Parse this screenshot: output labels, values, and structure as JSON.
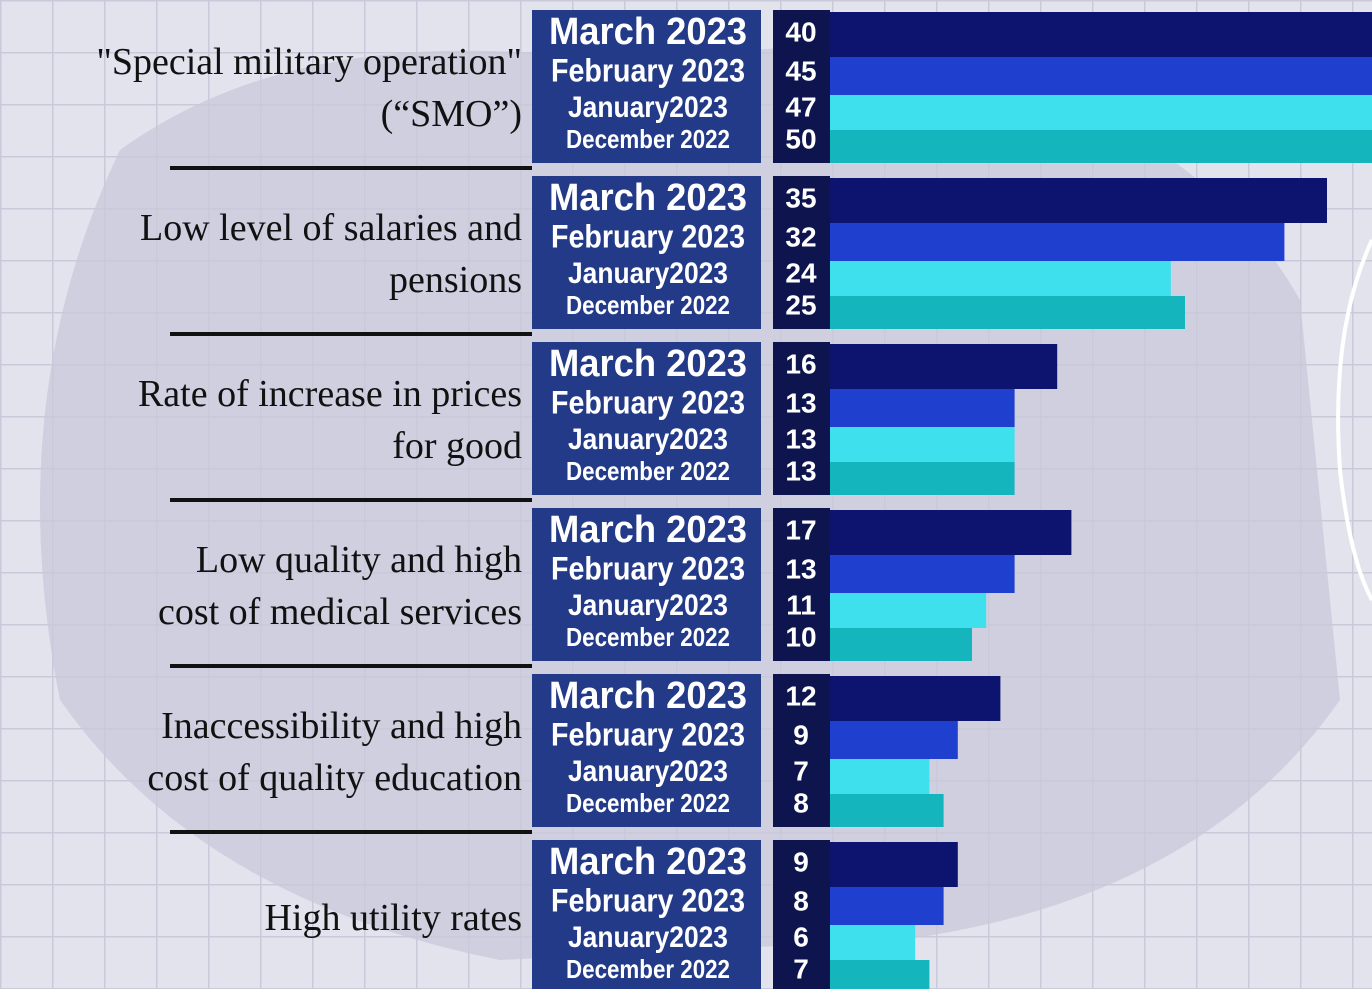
{
  "chart_data": {
    "type": "bar",
    "orientation": "horizontal",
    "categories": [
      "\"Special military operation\"\n(“SMO”)",
      "Low level of salaries and\npensions",
      "Rate of increase in prices\nfor good",
      "Low quality and high\ncost of medical services",
      "Inaccessibility and high\ncost of quality education",
      "High utility rates"
    ],
    "series": [
      {
        "name": "March 2023",
        "color": "#0d1470",
        "values": [
          40,
          35,
          16,
          17,
          12,
          9
        ]
      },
      {
        "name": "February 2023",
        "color": "#1f3fcf",
        "values": [
          45,
          32,
          13,
          13,
          9,
          8
        ]
      },
      {
        "name": "January2023",
        "color": "#3ee0ee",
        "values": [
          47,
          24,
          13,
          11,
          7,
          6
        ]
      },
      {
        "name": "December 2022",
        "color": "#14b5bd",
        "values": [
          50,
          25,
          13,
          10,
          8,
          7
        ]
      }
    ]
  }
}
